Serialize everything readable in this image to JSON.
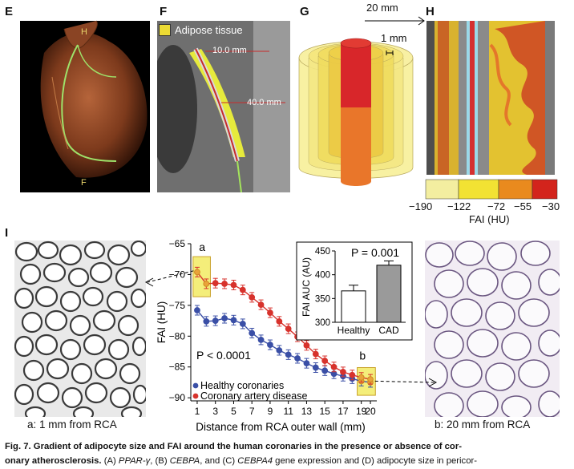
{
  "panels": {
    "E": {
      "letter": "E",
      "marker_h": "H",
      "marker_f": "F"
    },
    "F": {
      "letter": "F",
      "legend": "Adipose tissue",
      "dist1": "10.0 mm",
      "dist2": "40.0 mm"
    },
    "G": {
      "letter": "G",
      "scale_top": "20 mm",
      "scale_inner": "1 mm"
    },
    "H": {
      "letter": "H",
      "colorbar_ticks": [
        "−190",
        "−122",
        "−72",
        "−55",
        "−30"
      ],
      "colorbar_label": "FAI (HU)",
      "colorbar_colors": [
        "#f3eea0",
        "#f2e233",
        "#e98a1e",
        "#d3241c"
      ]
    },
    "I": {
      "letter": "I",
      "left_label": "a: 1 mm from RCA",
      "right_label": "b: 20 mm from RCA",
      "box_a": "a",
      "box_b": "b",
      "pvalue_main": "P < 0.0001",
      "inset_p": "P = 0.001"
    }
  },
  "chart_data": [
    {
      "type": "line",
      "xlabel": "Distance from RCA outer wall (mm)",
      "ylabel": "FAI  (HU)",
      "x": [
        1,
        2,
        3,
        4,
        5,
        6,
        7,
        8,
        9,
        10,
        11,
        12,
        13,
        14,
        15,
        16,
        17,
        18,
        19,
        20
      ],
      "xticks": [
        1,
        3,
        5,
        7,
        9,
        11,
        13,
        15,
        17,
        19,
        20
      ],
      "xlim": [
        0.3,
        20.7
      ],
      "ylim": [
        -90.5,
        -65
      ],
      "yticks": [
        -65,
        -70,
        -75,
        -80,
        -85,
        -90
      ],
      "series": [
        {
          "name": "Healthy coronaries",
          "color": "#3a4fa6",
          "values": [
            -75.8,
            -77.6,
            -77.5,
            -77.1,
            -77.4,
            -78.0,
            -79.5,
            -80.6,
            -81.4,
            -82.3,
            -83.0,
            -83.6,
            -84.4,
            -85.1,
            -85.6,
            -86.1,
            -86.5,
            -86.9,
            -87.3,
            -87.5
          ]
        },
        {
          "name": "Coronary artery disease",
          "color": "#d7322c",
          "values": [
            -69.6,
            -71.5,
            -71.4,
            -71.5,
            -71.7,
            -72.5,
            -73.7,
            -74.9,
            -76.2,
            -77.6,
            -78.8,
            -80.1,
            -81.5,
            -82.9,
            -84.0,
            -85.0,
            -85.8,
            -86.3,
            -86.7,
            -87.0
          ]
        }
      ],
      "legend_position": "bottom-left"
    },
    {
      "type": "bar",
      "categories": [
        "Healthy",
        "CAD"
      ],
      "values": [
        366,
        420
      ],
      "ylabel": "FAI AUC (AU)",
      "ylim": [
        300,
        450
      ],
      "yticks": [
        300,
        350,
        400,
        450
      ]
    }
  ],
  "caption": {
    "figlabel": "Fig. 7.",
    "title": "Gradient of adipocyte size and FAI around the human coronaries in the presence or absence of cor-",
    "title2": "onary atherosclerosis.",
    "body_a": "(A)",
    "gene_a": "PPAR-γ",
    "sep1": ", ",
    "body_b": "(B)",
    "gene_b": "CEBPA",
    "sep2": ", and ",
    "body_c": "(C)",
    "gene_c": "CEBPA4",
    "tail": " gene expression and ",
    "body_d": "(D)",
    "tail2": " adipocyte size in pericor-"
  }
}
